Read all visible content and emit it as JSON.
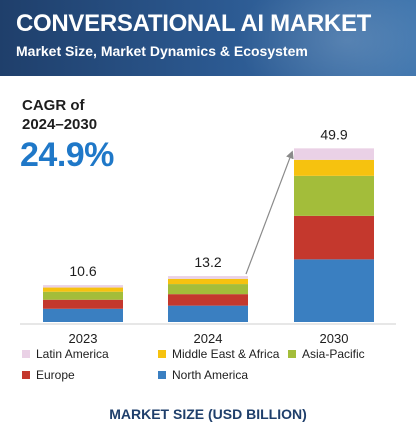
{
  "header": {
    "title": "CONVERSATIONAL AI MARKET",
    "subtitle": "Market Size, Market Dynamics & Ecosystem"
  },
  "cagr": {
    "label_line1": "CAGR of",
    "label_line2": "2024–2030",
    "value": "24.9%"
  },
  "footer": {
    "label": "MARKET SIZE (USD BILLION)"
  },
  "chart_data": {
    "type": "bar",
    "stacked": true,
    "categories": [
      "2023",
      "2024",
      "2030"
    ],
    "totals_labels": [
      "10.6",
      "13.2",
      "49.9"
    ],
    "totals": [
      10.6,
      13.2,
      49.9
    ],
    "series": [
      {
        "name": "North America",
        "color": "#3a7fc1",
        "values": [
          3.8,
          4.7,
          18.0
        ]
      },
      {
        "name": "Europe",
        "color": "#c4382d",
        "values": [
          2.6,
          3.3,
          12.5
        ]
      },
      {
        "name": "Asia-Pacific",
        "color": "#a3bd3a",
        "values": [
          2.3,
          2.9,
          11.5
        ]
      },
      {
        "name": "Middle East & Africa",
        "color": "#f6c20f",
        "values": [
          1.2,
          1.5,
          4.6
        ]
      },
      {
        "name": "Latin America",
        "color": "#ead1e6",
        "values": [
          0.7,
          0.8,
          3.3
        ]
      }
    ],
    "legend": {
      "placement": "bottom",
      "order": [
        "Latin America",
        "Middle East & Africa",
        "Asia-Pacific",
        "Europe",
        "North America"
      ]
    },
    "ylim": [
      0,
      50
    ],
    "grid": false,
    "arrow": {
      "from": "2024",
      "to": "2030"
    }
  }
}
